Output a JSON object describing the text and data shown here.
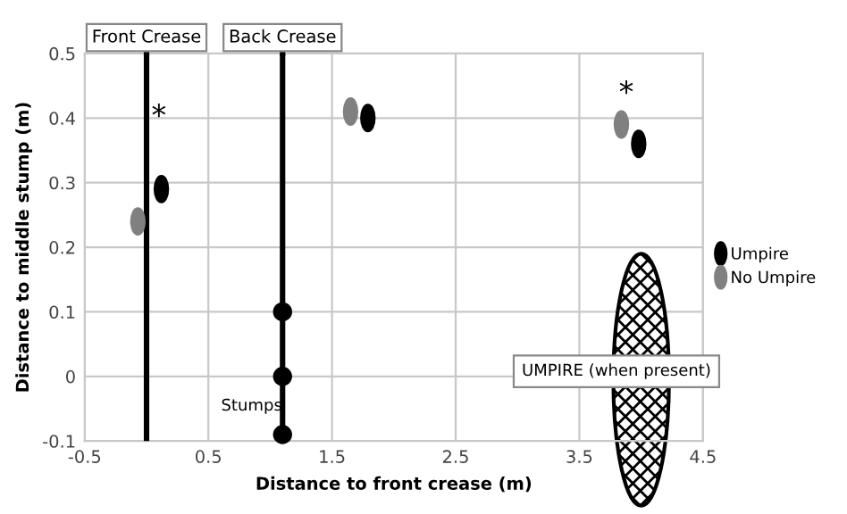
{
  "chart_data": {
    "type": "scatter",
    "xlabel": "Distance to front crease (m)",
    "ylabel": "Distance to middle stump (m)",
    "series": [
      {
        "name": "Umpire",
        "color": "#000000",
        "x": [
          0.12,
          1.79,
          3.98
        ],
        "values": [
          0.29,
          0.4,
          0.36
        ]
      },
      {
        "name": "No Umpire",
        "color": "#808080",
        "x": [
          -0.07,
          1.65,
          3.84
        ],
        "values": [
          0.24,
          0.41,
          0.39
        ]
      },
      {
        "color": "#000000",
        "x": [
          1.1,
          1.1,
          1.1
        ],
        "values": [
          0.1,
          0.0,
          -0.09
        ]
      }
    ],
    "ref_lines": [
      {
        "axis": "x",
        "value": 0,
        "label": "Front Crease",
        "color": "#000000"
      },
      {
        "axis": "x",
        "value": 1.1,
        "label": "Back Crease",
        "color": "#000000"
      }
    ],
    "annotations": [
      "*",
      "*",
      "Stumps",
      "UMPIRE (when present)"
    ],
    "xlim": [
      -0.5,
      4.5
    ],
    "xticks": [
      -0.5,
      0.5,
      1.5,
      2.5,
      3.5,
      4.5
    ],
    "ylim": [
      -0.1,
      0.5
    ],
    "yticks": [
      -0.1,
      0,
      0.1,
      0.2,
      0.3,
      0.4,
      0.5
    ],
    "grid": true,
    "legend": "right"
  }
}
